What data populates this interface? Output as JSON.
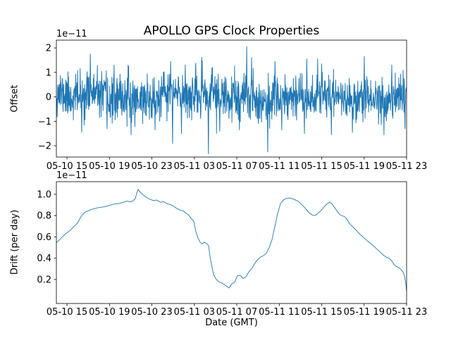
{
  "figure": {
    "background": "#ffffff",
    "text_color": "#000000",
    "spine_color": "#000000"
  },
  "chart_data": [
    {
      "type": "line",
      "title": "APOLLO GPS Clock Properties",
      "ylabel": "Offset",
      "offset_text": "1e−11",
      "line_color": "#1f77b4",
      "xlim_hours": [
        0,
        33
      ],
      "x_tick_hours": [
        1,
        5,
        9,
        13,
        17,
        21,
        25,
        29,
        33
      ],
      "x_tick_labels": [
        "05-10 15",
        "05-10 19",
        "05-10 23",
        "05-11 03",
        "05-11 07",
        "05-11 11",
        "05-11 15",
        "05-11 19",
        "05-11 23"
      ],
      "y_ticks": [
        -2,
        -1,
        0,
        1,
        2
      ],
      "y_tick_labels": [
        "−2",
        "−1",
        "0",
        "1",
        "2"
      ],
      "ylim": [
        -2.46,
        2.32
      ],
      "units": "1e-11 seconds",
      "noise": {
        "n": 1300,
        "sigma": 0.45,
        "mean": 0,
        "seed": 11,
        "clamp": [
          -2.38,
          2.26
        ],
        "wander": [
          [
            0.55,
            0.1,
            0.8
          ],
          [
            1.7,
            0.08,
            2.0
          ],
          [
            3.1,
            0.05,
            0.5
          ]
        ],
        "spikes": [
          [
            2.39,
            -1.45
          ],
          [
            3.19,
            1.75
          ],
          [
            4.78,
            -1.3
          ],
          [
            5.44,
            1.3
          ],
          [
            7.04,
            -1.55
          ],
          [
            9.3,
            -1.35
          ],
          [
            10.76,
            1.45
          ],
          [
            10.95,
            -1.9
          ],
          [
            11.8,
            -1.5
          ],
          [
            12.15,
            1.3
          ],
          [
            14.34,
            -2.33
          ],
          [
            14.7,
            1.2
          ],
          [
            15.4,
            -1.4
          ],
          [
            17.26,
            -1.35
          ],
          [
            17.93,
            2.05
          ],
          [
            18.4,
            1.6
          ],
          [
            19.92,
            -2.25
          ],
          [
            20.6,
            1.45
          ],
          [
            21.25,
            -1.35
          ],
          [
            23.37,
            -1.5
          ],
          [
            23.6,
            1.55
          ],
          [
            25.0,
            1.35
          ],
          [
            25.9,
            -1.55
          ],
          [
            27.9,
            -1.45
          ],
          [
            29.0,
            1.65
          ],
          [
            30.87,
            -1.55
          ],
          [
            31.6,
            1.3
          ],
          [
            32.86,
            -1.3
          ]
        ]
      }
    },
    {
      "type": "line",
      "title": "",
      "ylabel": "Drift (per day)",
      "xlabel": "Date (GMT)",
      "offset_text": "1e−11",
      "line_color": "#1f77b4",
      "xlim_hours": [
        0,
        33
      ],
      "x_tick_hours": [
        1,
        5,
        9,
        13,
        17,
        21,
        25,
        29,
        33
      ],
      "x_tick_labels": [
        "05-10 15",
        "05-10 19",
        "05-10 23",
        "05-11 03",
        "05-11 07",
        "05-11 11",
        "05-11 15",
        "05-11 19",
        "05-11 23"
      ],
      "y_ticks": [
        0.2,
        0.4,
        0.6,
        0.8,
        1.0
      ],
      "y_tick_labels": [
        "0.2",
        "0.4",
        "0.6",
        "0.8",
        "1.0"
      ],
      "ylim": [
        -0.025,
        1.118
      ],
      "units": "1e-11 per day",
      "points_h_v": [
        [
          0.0,
          0.545
        ],
        [
          0.66,
          0.61
        ],
        [
          1.33,
          0.665
        ],
        [
          1.99,
          0.73
        ],
        [
          2.32,
          0.79
        ],
        [
          2.66,
          0.83
        ],
        [
          3.32,
          0.858
        ],
        [
          3.98,
          0.875
        ],
        [
          4.65,
          0.885
        ],
        [
          5.31,
          0.905
        ],
        [
          5.98,
          0.915
        ],
        [
          6.64,
          0.935
        ],
        [
          7.04,
          0.928
        ],
        [
          7.3,
          0.945
        ],
        [
          7.44,
          0.96
        ],
        [
          7.57,
          1.01
        ],
        [
          7.7,
          1.045
        ],
        [
          7.9,
          1.02
        ],
        [
          8.17,
          0.995
        ],
        [
          8.43,
          0.975
        ],
        [
          8.76,
          0.955
        ],
        [
          9.16,
          0.94
        ],
        [
          9.43,
          0.946
        ],
        [
          9.83,
          0.925
        ],
        [
          10.09,
          0.93
        ],
        [
          10.49,
          0.91
        ],
        [
          10.95,
          0.895
        ],
        [
          11.29,
          0.87
        ],
        [
          11.68,
          0.85
        ],
        [
          11.95,
          0.845
        ],
        [
          12.15,
          0.825
        ],
        [
          12.41,
          0.81
        ],
        [
          12.68,
          0.775
        ],
        [
          12.95,
          0.745
        ],
        [
          13.14,
          0.65
        ],
        [
          13.34,
          0.59
        ],
        [
          13.54,
          0.55
        ],
        [
          13.74,
          0.535
        ],
        [
          13.94,
          0.55
        ],
        [
          14.14,
          0.54
        ],
        [
          14.34,
          0.52
        ],
        [
          14.47,
          0.42
        ],
        [
          14.6,
          0.35
        ],
        [
          14.8,
          0.25
        ],
        [
          15.0,
          0.21
        ],
        [
          15.27,
          0.18
        ],
        [
          15.54,
          0.17
        ],
        [
          15.8,
          0.155
        ],
        [
          16.07,
          0.135
        ],
        [
          16.27,
          0.12
        ],
        [
          16.53,
          0.16
        ],
        [
          16.8,
          0.175
        ],
        [
          17.06,
          0.235
        ],
        [
          17.33,
          0.24
        ],
        [
          17.59,
          0.21
        ],
        [
          17.86,
          0.225
        ],
        [
          18.12,
          0.27
        ],
        [
          18.46,
          0.31
        ],
        [
          18.72,
          0.355
        ],
        [
          18.99,
          0.39
        ],
        [
          19.25,
          0.41
        ],
        [
          19.52,
          0.425
        ],
        [
          19.78,
          0.445
        ],
        [
          20.05,
          0.5
        ],
        [
          20.32,
          0.575
        ],
        [
          20.58,
          0.695
        ],
        [
          20.85,
          0.82
        ],
        [
          21.11,
          0.91
        ],
        [
          21.38,
          0.945
        ],
        [
          21.64,
          0.96
        ],
        [
          21.91,
          0.965
        ],
        [
          22.17,
          0.96
        ],
        [
          22.44,
          0.95
        ],
        [
          22.77,
          0.935
        ],
        [
          23.1,
          0.905
        ],
        [
          23.44,
          0.87
        ],
        [
          23.77,
          0.83
        ],
        [
          24.1,
          0.805
        ],
        [
          24.37,
          0.8
        ],
        [
          24.63,
          0.82
        ],
        [
          24.96,
          0.85
        ],
        [
          25.29,
          0.89
        ],
        [
          25.56,
          0.915
        ],
        [
          25.76,
          0.925
        ],
        [
          25.96,
          0.91
        ],
        [
          26.22,
          0.875
        ],
        [
          26.49,
          0.835
        ],
        [
          26.75,
          0.805
        ],
        [
          27.02,
          0.795
        ],
        [
          27.22,
          0.785
        ],
        [
          27.42,
          0.76
        ],
        [
          27.62,
          0.725
        ],
        [
          27.88,
          0.7
        ],
        [
          28.22,
          0.665
        ],
        [
          28.55,
          0.63
        ],
        [
          28.88,
          0.6
        ],
        [
          29.21,
          0.57
        ],
        [
          29.54,
          0.545
        ],
        [
          29.88,
          0.515
        ],
        [
          30.21,
          0.485
        ],
        [
          30.54,
          0.455
        ],
        [
          30.8,
          0.43
        ],
        [
          31.07,
          0.41
        ],
        [
          31.34,
          0.4
        ],
        [
          31.6,
          0.375
        ],
        [
          31.8,
          0.345
        ],
        [
          32.0,
          0.325
        ],
        [
          32.27,
          0.31
        ],
        [
          32.46,
          0.295
        ],
        [
          32.66,
          0.27
        ],
        [
          32.8,
          0.235
        ],
        [
          32.93,
          0.16
        ],
        [
          33.0,
          0.09
        ]
      ]
    }
  ]
}
